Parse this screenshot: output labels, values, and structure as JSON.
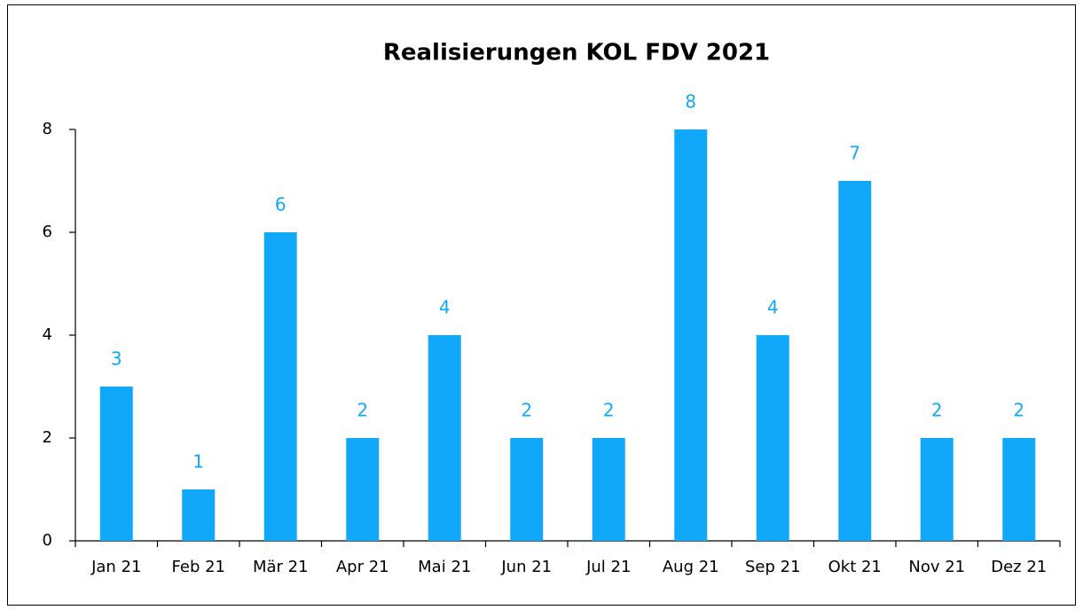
{
  "chart_data": {
    "type": "bar",
    "title": "Realisierungen KOL FDV 2021",
    "categories": [
      "Jan 21",
      "Feb 21",
      "Mär 21",
      "Apr 21",
      "Mai 21",
      "Jun 21",
      "Jul 21",
      "Aug 21",
      "Sep 21",
      "Okt 21",
      "Nov 21",
      "Dez 21"
    ],
    "values": [
      3,
      1,
      6,
      2,
      4,
      2,
      2,
      8,
      4,
      7,
      2,
      2
    ],
    "color": "#12a8f9",
    "ylim": [
      0,
      8
    ],
    "yticks": [
      0,
      2,
      4,
      6,
      8
    ],
    "grid": false,
    "data_labels": true
  }
}
